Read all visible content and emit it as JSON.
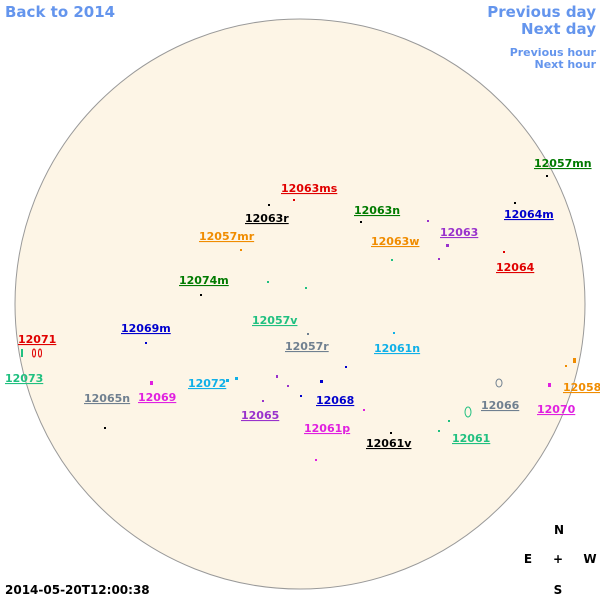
{
  "navigation": {
    "back": "Back to 2014",
    "previous_day": "Previous day",
    "next_day": "Next day",
    "previous_hour": "Previous hour",
    "next_hour": "Next hour"
  },
  "regions": [
    {
      "label": "12057mn",
      "color": "#007a00"
    },
    {
      "label": "12063ms",
      "color": "#e00000"
    },
    {
      "label": "12063r",
      "color": "#000000"
    },
    {
      "label": "12063n",
      "color": "#007a00"
    },
    {
      "label": "12063",
      "color": "#9932cc"
    },
    {
      "label": "12064m",
      "color": "#0000cd"
    },
    {
      "label": "12057mr",
      "color": "#f08c00"
    },
    {
      "label": "12063w",
      "color": "#f08c00"
    },
    {
      "label": "12064",
      "color": "#e00000"
    },
    {
      "label": "12074m",
      "color": "#007a00"
    },
    {
      "label": "12057v",
      "color": "#20c080"
    },
    {
      "label": "12071",
      "color": "#e00000"
    },
    {
      "label": "12069m",
      "color": "#0000cd"
    },
    {
      "label": "12057r",
      "color": "#708090"
    },
    {
      "label": "12061n",
      "color": "#10b0e8"
    },
    {
      "label": "12073",
      "color": "#20c080"
    },
    {
      "label": "12072",
      "color": "#10b0e8"
    },
    {
      "label": "12065n",
      "color": "#708090"
    },
    {
      "label": "12069",
      "color": "#e020e0"
    },
    {
      "label": "12058",
      "color": "#f08c00"
    },
    {
      "label": "12068",
      "color": "#0000cd"
    },
    {
      "label": "12066",
      "color": "#708090"
    },
    {
      "label": "12070",
      "color": "#e020e0"
    },
    {
      "label": "12065",
      "color": "#9932cc"
    },
    {
      "label": "12061p",
      "color": "#e020e0"
    },
    {
      "label": "12061",
      "color": "#20c080"
    },
    {
      "label": "12061v",
      "color": "#000000"
    }
  ],
  "compass": {
    "north": "N",
    "east": "E",
    "center": "+",
    "west": "W",
    "south": "S"
  },
  "timestamp": "2014-05-20T12:00:38"
}
